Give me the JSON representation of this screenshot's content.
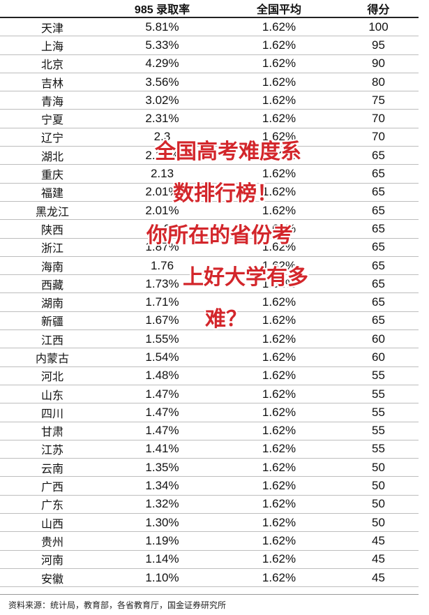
{
  "chart_data": {
    "type": "table",
    "columns": [
      "",
      "985 录取率",
      "全国平均",
      "得分"
    ],
    "rows": [
      [
        "天津",
        "5.81%",
        "1.62%",
        "100"
      ],
      [
        "上海",
        "5.33%",
        "1.62%",
        "95"
      ],
      [
        "北京",
        "4.29%",
        "1.62%",
        "90"
      ],
      [
        "吉林",
        "3.56%",
        "1.62%",
        "80"
      ],
      [
        "青海",
        "3.02%",
        "1.62%",
        "75"
      ],
      [
        "宁夏",
        "2.31%",
        "1.62%",
        "70"
      ],
      [
        "辽宁",
        "2.3",
        "1.62%",
        "70"
      ],
      [
        "湖北",
        "2.14%",
        "1.62%",
        "65"
      ],
      [
        "重庆",
        "2.13",
        "1.62%",
        "65"
      ],
      [
        "福建",
        "2.01%",
        "1.62%",
        "65"
      ],
      [
        "黑龙江",
        "2.01%",
        "1.62%",
        "65"
      ],
      [
        "陕西",
        "1.9",
        "1.62%",
        "65"
      ],
      [
        "浙江",
        "1.87%",
        "1.62%",
        "65"
      ],
      [
        "海南",
        "1.76",
        "1.62%",
        "65"
      ],
      [
        "西藏",
        "1.73%",
        "1.62%",
        "65"
      ],
      [
        "湖南",
        "1.71%",
        "1.62%",
        "65"
      ],
      [
        "新疆",
        "1.67%",
        "1.62%",
        "65"
      ],
      [
        "江西",
        "1.55%",
        "1.62%",
        "60"
      ],
      [
        "内蒙古",
        "1.54%",
        "1.62%",
        "60"
      ],
      [
        "河北",
        "1.48%",
        "1.62%",
        "55"
      ],
      [
        "山东",
        "1.47%",
        "1.62%",
        "55"
      ],
      [
        "四川",
        "1.47%",
        "1.62%",
        "55"
      ],
      [
        "甘肃",
        "1.47%",
        "1.62%",
        "55"
      ],
      [
        "江苏",
        "1.41%",
        "1.62%",
        "55"
      ],
      [
        "云南",
        "1.35%",
        "1.62%",
        "50"
      ],
      [
        "广西",
        "1.34%",
        "1.62%",
        "50"
      ],
      [
        "广东",
        "1.32%",
        "1.62%",
        "50"
      ],
      [
        "山西",
        "1.30%",
        "1.62%",
        "50"
      ],
      [
        "贵州",
        "1.19%",
        "1.62%",
        "45"
      ],
      [
        "河南",
        "1.14%",
        "1.62%",
        "45"
      ],
      [
        "安徽",
        "1.10%",
        "1.62%",
        "45"
      ]
    ]
  },
  "source": "资料来源：统计局，教育部，各省教育厅，国金证券研究所",
  "overlay": {
    "lines": [
      "全国高考难度系",
      "数排行榜！",
      "你所在的省份考",
      "上好大学有多",
      "难？"
    ],
    "color": "#d3262b"
  }
}
